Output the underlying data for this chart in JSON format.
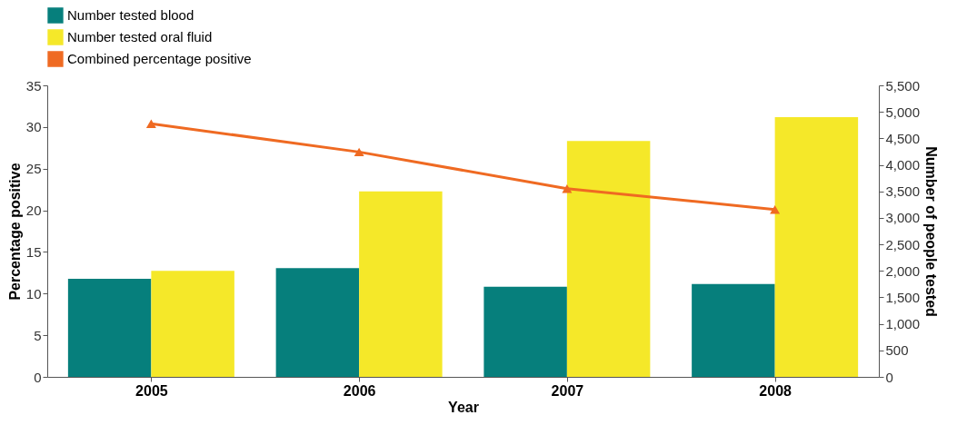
{
  "chart_data": {
    "type": "bar",
    "xlabel": "Year",
    "ylabel": "Percentage positive",
    "y2label": "Number of people tested",
    "categories": [
      "2005",
      "2006",
      "2007",
      "2008"
    ],
    "series": [
      {
        "name": "Number tested blood",
        "color": "#067f7c",
        "axis": "y2",
        "values": [
          1850,
          2050,
          1700,
          1750
        ]
      },
      {
        "name": "Number tested oral fluid",
        "color": "#f5e829",
        "axis": "y2",
        "values": [
          2000,
          3500,
          4450,
          4900
        ]
      },
      {
        "name": "Combined percentage positive",
        "color": "#ef6a22",
        "type": "line",
        "axis": "y",
        "marker": "triangle",
        "values": [
          30.4,
          27.0,
          22.6,
          20.1
        ]
      }
    ],
    "ylim": [
      0,
      35
    ],
    "yticks": [
      0,
      5,
      10,
      15,
      20,
      25,
      30,
      35
    ],
    "y2lim": [
      0,
      5500
    ],
    "y2ticks": [
      0,
      500,
      {
        "value": 1000,
        "label": "1,000"
      },
      {
        "value": 1500,
        "label": "1,500"
      },
      {
        "value": 2000,
        "label": "2,000"
      },
      {
        "value": 2500,
        "label": "2,500"
      },
      {
        "value": 3000,
        "label": "3,000"
      },
      {
        "value": 3500,
        "label": "3,500"
      },
      {
        "value": 4000,
        "label": "4,000"
      },
      {
        "value": 4500,
        "label": "4,500"
      },
      {
        "value": 5000,
        "label": "5,000"
      },
      {
        "value": 5500,
        "label": "5,500"
      }
    ],
    "grid": false,
    "legend": "top"
  }
}
